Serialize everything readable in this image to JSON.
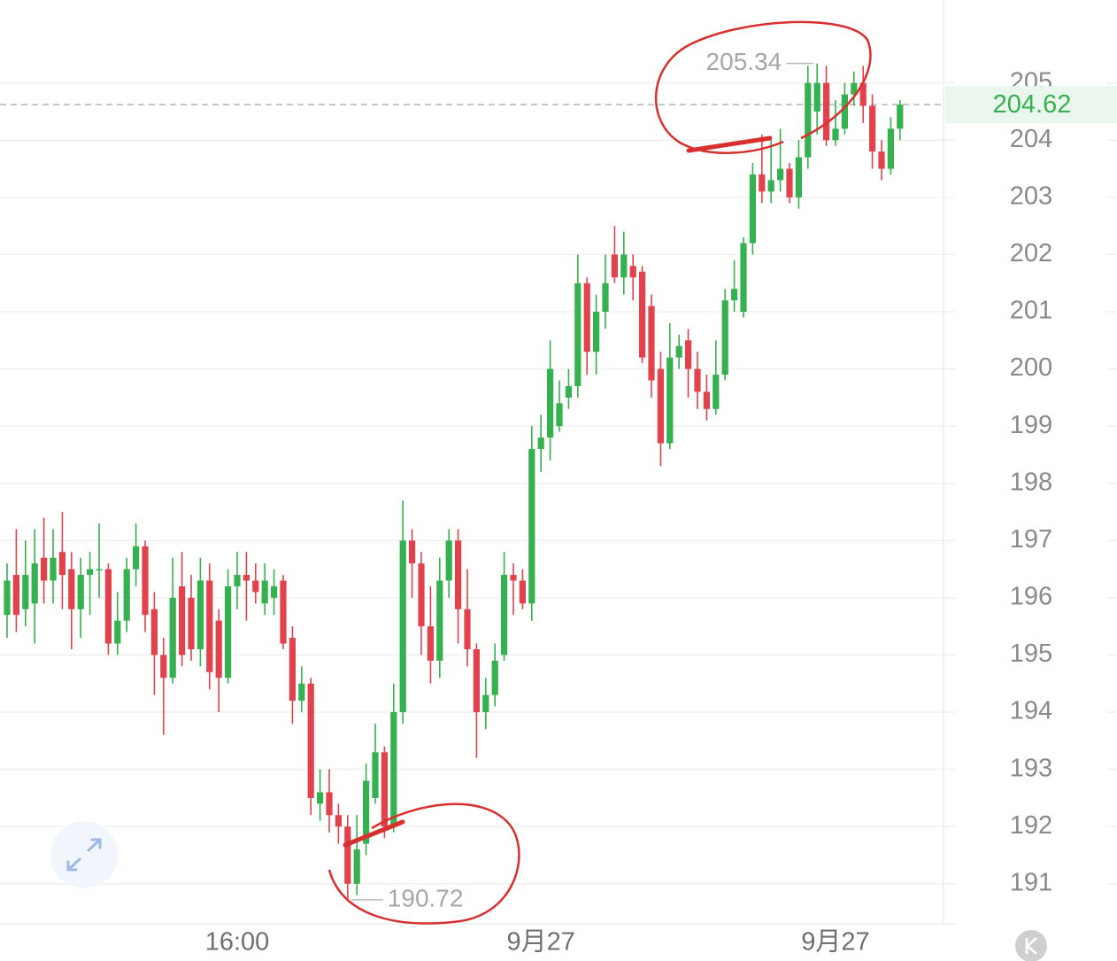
{
  "chart_data": {
    "type": "candlestick",
    "categories": [
      null,
      null,
      null,
      null,
      null,
      null,
      null,
      null,
      null,
      null,
      null,
      null,
      null,
      null,
      null,
      null,
      null,
      null,
      null,
      null,
      null,
      null,
      null,
      null,
      null,
      "16:00",
      null,
      null,
      null,
      null,
      null,
      null,
      null,
      null,
      null,
      null,
      null,
      null,
      null,
      null,
      null,
      null,
      null,
      null,
      null,
      null,
      null,
      null,
      null,
      null,
      null,
      null,
      null,
      null,
      null,
      null,
      null,
      null,
      "9月27",
      null,
      null,
      null,
      null,
      null,
      null,
      null,
      null,
      null,
      null,
      null,
      null,
      null,
      null,
      null,
      null,
      null,
      null,
      null,
      null,
      null,
      null,
      null,
      null,
      null,
      null,
      null,
      null,
      null,
      null,
      null,
      "9月27",
      null,
      null,
      null,
      null,
      null,
      null,
      null
    ],
    "open": [
      195.7,
      196.4,
      195.8,
      195.9,
      196.7,
      196.3,
      196.8,
      196.5,
      195.8,
      196.4,
      196.5,
      196.5,
      195.2,
      195.6,
      196.5,
      196.9,
      195.8,
      195.0,
      194.6,
      196.2,
      196.0,
      195.1,
      196.3,
      195.6,
      194.6,
      196.2,
      196.4,
      196.3,
      195.9,
      196.0,
      196.3,
      195.3,
      194.2,
      194.5,
      192.4,
      192.6,
      192.2,
      192.0,
      191.0,
      191.7,
      192.5,
      193.3,
      192.0,
      194.0,
      197.0,
      196.6,
      195.5,
      194.9,
      196.3,
      197.0,
      195.8,
      195.1,
      194.0,
      194.3,
      195.0,
      196.4,
      196.3,
      195.9,
      198.6,
      198.8,
      199.0,
      199.5,
      199.7,
      201.5,
      200.3,
      201.0,
      202.0,
      201.6,
      201.8,
      201.7,
      201.1,
      200.0,
      198.7,
      200.2,
      200.5,
      200.0,
      199.6,
      199.3,
      199.9,
      201.2,
      201.0,
      202.2,
      203.4,
      203.1,
      203.3,
      203.5,
      203.0,
      203.7,
      204.5,
      205.0,
      204.0,
      204.2,
      204.8,
      205.0,
      204.6,
      203.8,
      203.5,
      204.2
    ],
    "high": [
      196.6,
      197.2,
      197.0,
      197.2,
      197.4,
      197.2,
      197.5,
      196.8,
      196.7,
      196.8,
      197.3,
      196.6,
      196.1,
      196.7,
      197.3,
      197.0,
      196.1,
      195.3,
      196.7,
      196.8,
      196.4,
      196.7,
      196.6,
      195.8,
      196.5,
      196.8,
      196.8,
      196.6,
      196.6,
      196.5,
      196.4,
      195.5,
      194.8,
      194.6,
      193.0,
      193.0,
      192.4,
      192.2,
      192.2,
      193.1,
      193.8,
      193.4,
      194.5,
      197.7,
      197.2,
      196.8,
      196.2,
      196.7,
      197.2,
      197.2,
      196.5,
      195.2,
      194.6,
      195.2,
      196.8,
      196.6,
      196.5,
      199.0,
      199.2,
      200.5,
      199.8,
      200.0,
      202.0,
      201.6,
      201.3,
      202.0,
      202.5,
      202.4,
      202.0,
      201.8,
      201.3,
      200.3,
      200.8,
      200.6,
      200.7,
      200.3,
      199.9,
      200.5,
      201.4,
      201.9,
      202.3,
      203.6,
      204.1,
      204.0,
      204.2,
      203.6,
      204.0,
      205.3,
      205.34,
      205.3,
      204.7,
      205.0,
      205.2,
      205.3,
      204.8,
      204.0,
      204.4,
      204.7
    ],
    "low": [
      195.3,
      195.4,
      195.5,
      195.2,
      195.9,
      195.9,
      195.8,
      195.1,
      195.3,
      195.7,
      196.0,
      195.0,
      195.0,
      195.4,
      196.2,
      195.4,
      194.3,
      193.6,
      194.5,
      194.8,
      194.9,
      194.8,
      194.4,
      194.0,
      194.5,
      195.8,
      195.6,
      195.9,
      195.7,
      195.7,
      195.1,
      193.8,
      194.0,
      192.2,
      192.1,
      191.9,
      191.7,
      190.72,
      190.8,
      191.5,
      192.4,
      191.8,
      191.9,
      193.8,
      196.0,
      195.0,
      194.5,
      194.6,
      196.0,
      195.2,
      194.8,
      193.2,
      193.7,
      194.1,
      194.9,
      195.7,
      195.8,
      195.6,
      198.2,
      198.4,
      198.9,
      199.3,
      199.5,
      199.9,
      199.9,
      200.7,
      201.5,
      201.3,
      201.2,
      200.1,
      199.5,
      198.3,
      198.6,
      200.0,
      199.5,
      199.3,
      199.1,
      199.2,
      199.8,
      201.0,
      200.9,
      202.0,
      202.9,
      202.9,
      203.1,
      202.9,
      202.8,
      203.5,
      204.1,
      203.9,
      203.9,
      204.1,
      204.6,
      204.3,
      203.5,
      203.3,
      203.4,
      204.0
    ],
    "close": [
      196.3,
      195.7,
      196.4,
      196.6,
      196.3,
      196.7,
      196.4,
      195.8,
      196.4,
      196.5,
      196.5,
      195.2,
      195.6,
      196.5,
      196.9,
      195.7,
      195.0,
      194.6,
      196.0,
      195.0,
      195.1,
      196.3,
      194.7,
      194.6,
      196.2,
      196.4,
      196.3,
      196.1,
      196.3,
      196.2,
      195.2,
      194.2,
      194.5,
      192.5,
      192.6,
      192.2,
      192.0,
      191.0,
      191.6,
      192.8,
      193.3,
      192.0,
      194.0,
      197.0,
      196.6,
      195.5,
      194.9,
      196.3,
      197.0,
      195.8,
      195.1,
      194.0,
      194.3,
      194.9,
      196.4,
      196.3,
      195.9,
      198.6,
      198.8,
      200.0,
      199.4,
      199.7,
      201.5,
      200.3,
      201.0,
      201.5,
      201.6,
      202.0,
      201.6,
      200.2,
      199.8,
      198.7,
      200.2,
      200.4,
      200.0,
      199.6,
      199.3,
      199.9,
      201.2,
      201.4,
      202.2,
      203.4,
      203.1,
      203.3,
      203.5,
      203.0,
      203.7,
      205.0,
      205.0,
      204.0,
      204.2,
      204.8,
      205.0,
      204.6,
      203.8,
      203.5,
      204.2,
      204.62
    ],
    "up_color": "#35b150",
    "down_color": "#e2424b",
    "ylim": [
      190.3,
      206.45
    ],
    "yticks": [
      191,
      192,
      193,
      194,
      195,
      196,
      197,
      198,
      199,
      200,
      201,
      202,
      203,
      204,
      205
    ],
    "grid": true,
    "high_label": 205.34,
    "low_label": 190.72,
    "last_price": 204.62
  }
}
